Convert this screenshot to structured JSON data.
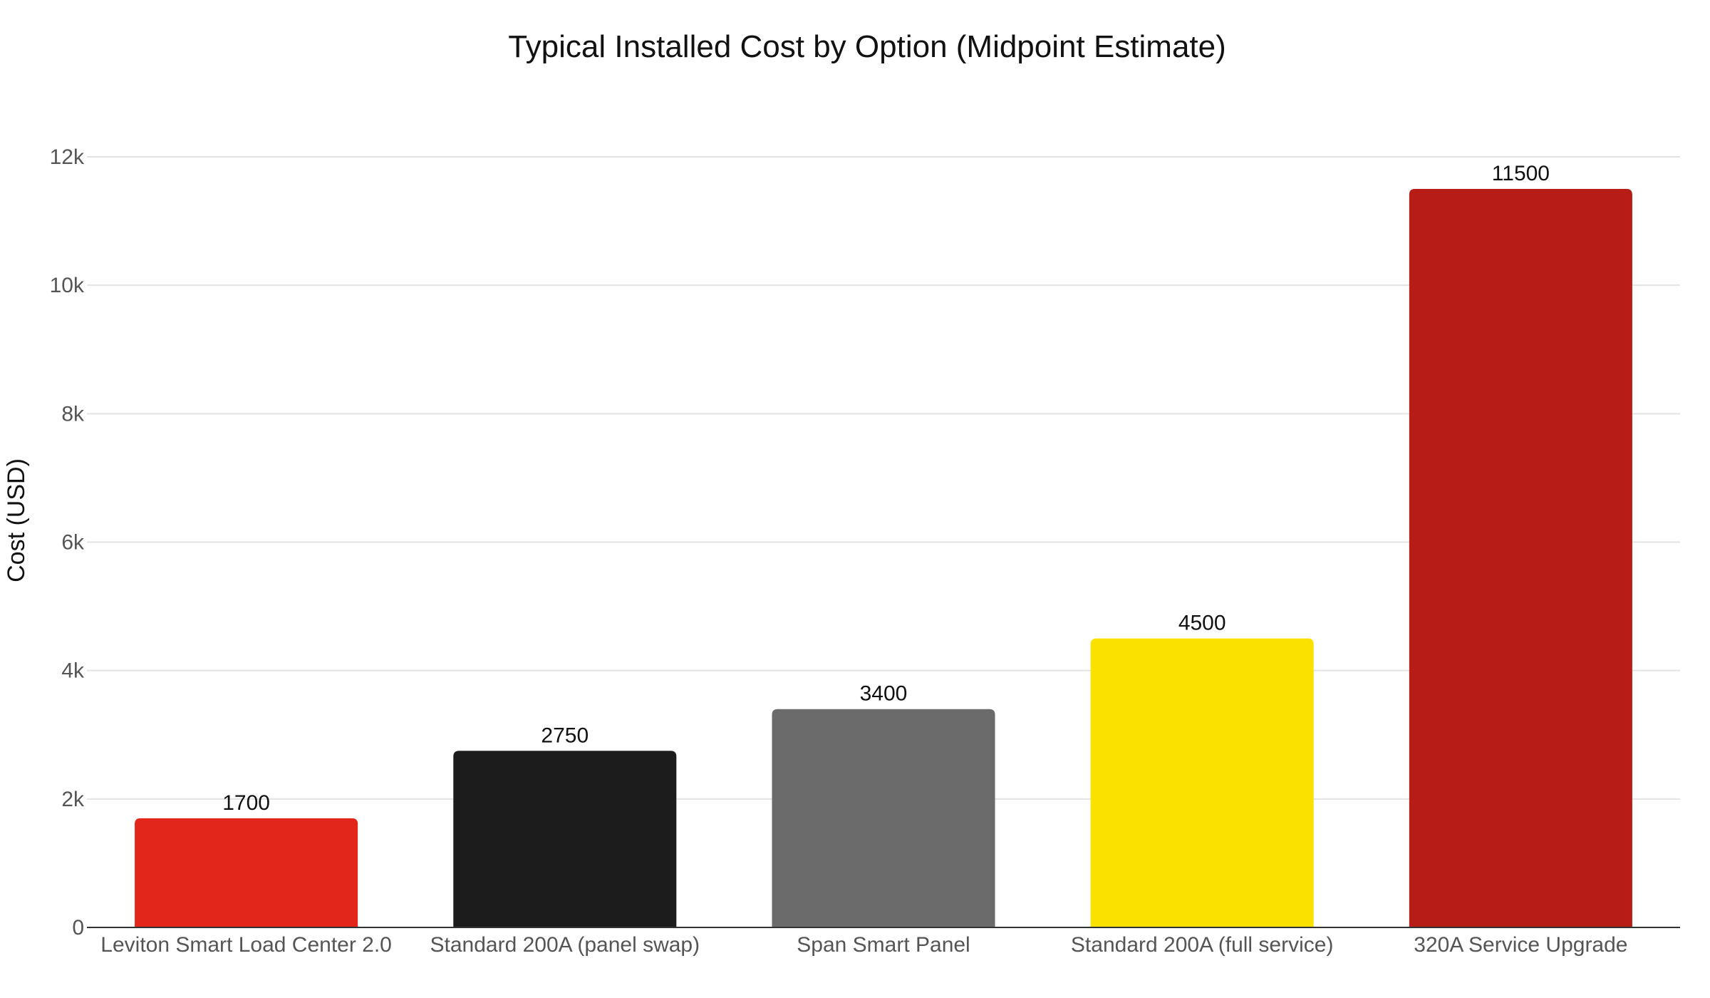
{
  "chart_data": {
    "type": "bar",
    "title": "Typical Installed Cost by Option (Midpoint Estimate)",
    "xlabel": "",
    "ylabel": "Cost (USD)",
    "categories": [
      "Leviton Smart Load Center 2.0",
      "Standard 200A (panel swap)",
      "Span Smart Panel",
      "Standard 200A (full service)",
      "320A Service Upgrade"
    ],
    "values": [
      1700,
      2750,
      3400,
      4500,
      11500
    ],
    "value_labels": [
      "1700",
      "2750",
      "3400",
      "4500",
      "11500"
    ],
    "colors": [
      "#e3261c",
      "#1c1c1c",
      "#6b6b6b",
      "#fbe100",
      "#b71c16"
    ],
    "ylim": [
      0,
      12000
    ],
    "yticks": [
      0,
      2000,
      4000,
      6000,
      8000,
      10000,
      12000
    ],
    "ytick_labels": [
      "0",
      "2k",
      "4k",
      "6k",
      "8k",
      "10k",
      "12k"
    ],
    "grid": true,
    "legend": "none"
  }
}
